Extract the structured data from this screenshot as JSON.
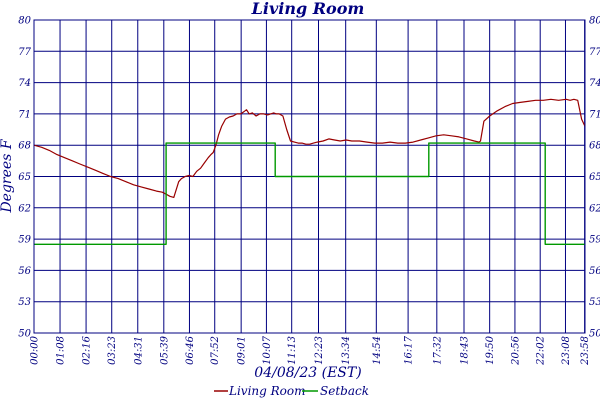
{
  "colors": {
    "grid": "#000080",
    "frame": "#000080",
    "text": "#000080",
    "living_room": "#990000",
    "setback": "#009900",
    "background": "#ffffff"
  },
  "chart_data": {
    "type": "line",
    "title": "Living Room",
    "xlabel": "04/08/23 (EST)",
    "ylabel": "Degrees F",
    "ylim": [
      50,
      80
    ],
    "xlim": [
      0,
      1439
    ],
    "grid": true,
    "legend_placement": "bottom-center",
    "y_ticks": [
      {
        "value": 50,
        "label": "50"
      },
      {
        "value": 53,
        "label": "53"
      },
      {
        "value": 56,
        "label": "56"
      },
      {
        "value": 59,
        "label": "59"
      },
      {
        "value": 62,
        "label": "62"
      },
      {
        "value": 65,
        "label": "65"
      },
      {
        "value": 68,
        "label": "68"
      },
      {
        "value": 71,
        "label": "71"
      },
      {
        "value": 74,
        "label": "74"
      },
      {
        "value": 77,
        "label": "77"
      },
      {
        "value": 80,
        "label": "80"
      }
    ],
    "x_ticks": [
      {
        "value": 0,
        "label": "00:00"
      },
      {
        "value": 68,
        "label": "01:08"
      },
      {
        "value": 136,
        "label": "02:16"
      },
      {
        "value": 203,
        "label": "03:23"
      },
      {
        "value": 271,
        "label": "04:31"
      },
      {
        "value": 339,
        "label": "05:39"
      },
      {
        "value": 406,
        "label": "06:46"
      },
      {
        "value": 472,
        "label": "07:52"
      },
      {
        "value": 541,
        "label": "09:01"
      },
      {
        "value": 607,
        "label": "10:07"
      },
      {
        "value": 673,
        "label": "11:13"
      },
      {
        "value": 743,
        "label": "12:23"
      },
      {
        "value": 814,
        "label": "13:34"
      },
      {
        "value": 894,
        "label": "14:54"
      },
      {
        "value": 977,
        "label": "16:17"
      },
      {
        "value": 1052,
        "label": "17:32"
      },
      {
        "value": 1123,
        "label": "18:43"
      },
      {
        "value": 1190,
        "label": "19:50"
      },
      {
        "value": 1256,
        "label": "20:56"
      },
      {
        "value": 1322,
        "label": "22:02"
      },
      {
        "value": 1388,
        "label": "23:08"
      },
      {
        "value": 1438,
        "label": "23:58"
      }
    ],
    "series": [
      {
        "name": "Living Room",
        "color": "#990000",
        "x": [
          0,
          20,
          40,
          60,
          80,
          100,
          120,
          140,
          160,
          180,
          200,
          220,
          240,
          260,
          280,
          300,
          320,
          335,
          345,
          355,
          365,
          378,
          385,
          395,
          405,
          415,
          425,
          435,
          445,
          455,
          462,
          468,
          475,
          482,
          490,
          500,
          510,
          520,
          530,
          540,
          548,
          555,
          562,
          570,
          580,
          590,
          600,
          610,
          618,
          626,
          633,
          640,
          650,
          660,
          670,
          680,
          690,
          700,
          710,
          720,
          730,
          740,
          755,
          770,
          785,
          800,
          815,
          830,
          850,
          870,
          890,
          910,
          930,
          950,
          970,
          990,
          1010,
          1030,
          1050,
          1070,
          1090,
          1110,
          1130,
          1150,
          1162,
          1166,
          1175,
          1190,
          1210,
          1230,
          1250,
          1270,
          1290,
          1310,
          1330,
          1350,
          1370,
          1390,
          1400,
          1410,
          1420,
          1430,
          1439
        ],
        "values": [
          68.0,
          67.8,
          67.5,
          67.1,
          66.8,
          66.5,
          66.2,
          65.9,
          65.6,
          65.3,
          65.0,
          64.8,
          64.5,
          64.2,
          64.0,
          63.8,
          63.6,
          63.5,
          63.3,
          63.1,
          63.0,
          64.5,
          64.8,
          65.0,
          65.1,
          65.0,
          65.5,
          65.8,
          66.3,
          66.8,
          67.1,
          67.3,
          68.0,
          69.0,
          69.8,
          70.5,
          70.7,
          70.8,
          71.0,
          71.0,
          71.2,
          71.4,
          71.0,
          71.1,
          70.8,
          71.0,
          71.0,
          70.9,
          71.0,
          71.1,
          71.0,
          71.0,
          70.8,
          69.5,
          68.4,
          68.3,
          68.2,
          68.2,
          68.1,
          68.1,
          68.2,
          68.3,
          68.4,
          68.6,
          68.5,
          68.4,
          68.5,
          68.4,
          68.4,
          68.3,
          68.2,
          68.2,
          68.3,
          68.2,
          68.2,
          68.3,
          68.5,
          68.7,
          68.9,
          69.0,
          68.9,
          68.8,
          68.6,
          68.4,
          68.3,
          68.4,
          70.3,
          70.8,
          71.3,
          71.7,
          72.0,
          72.1,
          72.2,
          72.3,
          72.3,
          72.4,
          72.3,
          72.4,
          72.3,
          72.4,
          72.3,
          70.5,
          69.8
        ]
      },
      {
        "name": "Setback",
        "color": "#009900",
        "step": true,
        "x": [
          0,
          345,
          345,
          630,
          630,
          1031,
          1031,
          1335,
          1335,
          1439
        ],
        "values": [
          58.5,
          58.5,
          68.2,
          68.2,
          65.0,
          65.0,
          68.2,
          68.2,
          58.5,
          58.5
        ]
      }
    ]
  }
}
